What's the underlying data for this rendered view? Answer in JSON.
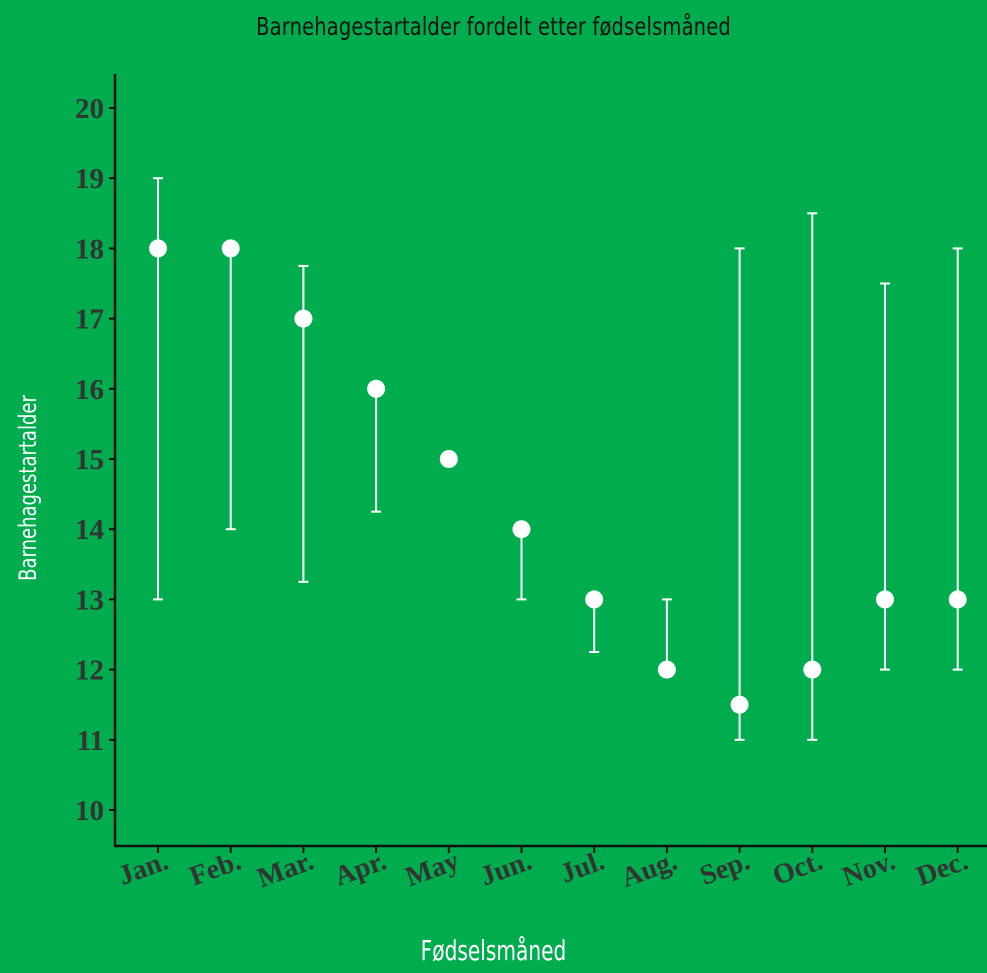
{
  "chart_data": {
    "type": "scatter",
    "title": "Barnehagestartalder fordelt etter fødselsmåned",
    "xlabel": "Fødselsmåned",
    "ylabel": "Barnehagestartalder",
    "categories": [
      "Jan.",
      "Feb.",
      "Mar.",
      "Apr.",
      "May",
      "Jun.",
      "Jul.",
      "Aug.",
      "Sep.",
      "Oct.",
      "Nov.",
      "Dec."
    ],
    "values": [
      18,
      18,
      17,
      16,
      15,
      14,
      13,
      12,
      11.5,
      12,
      13,
      13
    ],
    "error_low": [
      13,
      14,
      13.25,
      14.25,
      15,
      13,
      12.25,
      12,
      11,
      11,
      12,
      12
    ],
    "error_high": [
      19,
      18,
      17.75,
      16,
      15,
      14,
      13,
      13,
      18,
      18.5,
      17.5,
      18
    ],
    "yticks": [
      10,
      11,
      12,
      13,
      14,
      15,
      16,
      17,
      18,
      19,
      20
    ],
    "ylim": [
      9.5,
      20.5
    ],
    "grid": false,
    "legend": "none",
    "colors": {
      "background": "#00ad4e",
      "points": "#ffffff",
      "errorbars": "#ffffff",
      "axis": "#111111",
      "tick_text": "#333333"
    }
  }
}
